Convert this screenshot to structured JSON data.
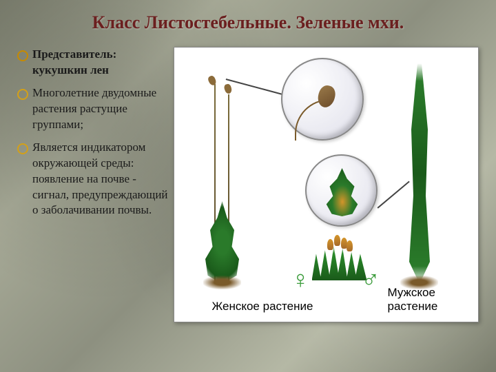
{
  "title": "Класс Листостебельные. Зеленые мхи.",
  "bullets": [
    {
      "text": "Представитель: кукушкин лен",
      "bold": true
    },
    {
      "text": "Многолетние двудомные растения растущие группами;",
      "bold": false
    },
    {
      "text": "Является индикатором окружающей среды: появление на почве - сигнал, предупреждающий о заболачивании почвы.",
      "bold": false
    }
  ],
  "diagram": {
    "female_label": "Женское растение",
    "male_label": "Мужское растение",
    "female_symbol": "♀",
    "male_symbol": "♂"
  },
  "colors": {
    "title_color": "#6b1f1f",
    "bullet_marker": "#d4a017",
    "symbol_color": "#3a9b3a",
    "background": "#8d9080"
  }
}
